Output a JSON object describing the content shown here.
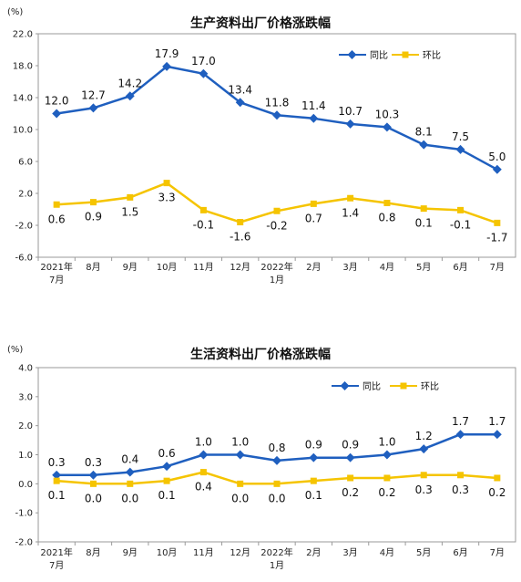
{
  "chart_data": [
    {
      "type": "line",
      "title": "生产资料出厂价格涨跌幅",
      "ylabel": "(%)",
      "ylim": [
        -6.0,
        22.0
      ],
      "yticks": [
        "22.0",
        "18.0",
        "14.0",
        "10.0",
        "6.0",
        "2.0",
        "-2.0",
        "-6.0"
      ],
      "categories": [
        {
          "line1": "2021年",
          "line2": "7月"
        },
        {
          "line1": "8月",
          "line2": ""
        },
        {
          "line1": "9月",
          "line2": ""
        },
        {
          "line1": "10月",
          "line2": ""
        },
        {
          "line1": "11月",
          "line2": ""
        },
        {
          "line1": "12月",
          "line2": ""
        },
        {
          "line1": "2022年",
          "line2": "1月"
        },
        {
          "line1": "2月",
          "line2": ""
        },
        {
          "line1": "3月",
          "line2": ""
        },
        {
          "line1": "4月",
          "line2": ""
        },
        {
          "line1": "5月",
          "line2": ""
        },
        {
          "line1": "6月",
          "line2": ""
        },
        {
          "line1": "7月",
          "line2": ""
        }
      ],
      "legend_position": "top-right",
      "series": [
        {
          "name": "同比",
          "color": "#1f5fbf",
          "marker": "diamond",
          "values": [
            12.0,
            12.7,
            14.2,
            17.9,
            17.0,
            13.4,
            11.8,
            11.4,
            10.7,
            10.3,
            8.1,
            7.5,
            5.0
          ],
          "labels": [
            "12.0",
            "12.7",
            "14.2",
            "17.9",
            "17.0",
            "13.4",
            "11.8",
            "11.4",
            "10.7",
            "10.3",
            "8.1",
            "7.5",
            "5.0"
          ]
        },
        {
          "name": "环比",
          "color": "#f5c400",
          "marker": "square",
          "values": [
            0.6,
            0.9,
            1.5,
            3.3,
            -0.1,
            -1.6,
            -0.2,
            0.7,
            1.4,
            0.8,
            0.1,
            -0.1,
            -1.7
          ],
          "labels": [
            "0.6",
            "0.9",
            "1.5",
            "3.3",
            "-0.1",
            "-1.6",
            "-0.2",
            "0.7",
            "1.4",
            "0.8",
            "0.1",
            "-0.1",
            "-1.7"
          ]
        }
      ]
    },
    {
      "type": "line",
      "title": "生活资料出厂价格涨跌幅",
      "ylabel": "(%)",
      "ylim": [
        -2.0,
        4.0
      ],
      "yticks": [
        "4.0",
        "3.0",
        "2.0",
        "1.0",
        "0.0",
        "-1.0",
        "-2.0"
      ],
      "categories": [
        {
          "line1": "2021年",
          "line2": "7月"
        },
        {
          "line1": "8月",
          "line2": ""
        },
        {
          "line1": "9月",
          "line2": ""
        },
        {
          "line1": "10月",
          "line2": ""
        },
        {
          "line1": "11月",
          "line2": ""
        },
        {
          "line1": "12月",
          "line2": ""
        },
        {
          "line1": "2022年",
          "line2": "1月"
        },
        {
          "line1": "2月",
          "line2": ""
        },
        {
          "line1": "3月",
          "line2": ""
        },
        {
          "line1": "4月",
          "line2": ""
        },
        {
          "line1": "5月",
          "line2": ""
        },
        {
          "line1": "6月",
          "line2": ""
        },
        {
          "line1": "7月",
          "line2": ""
        }
      ],
      "legend_position": "top-right",
      "series": [
        {
          "name": "同比",
          "color": "#1f5fbf",
          "marker": "diamond",
          "values": [
            0.3,
            0.3,
            0.4,
            0.6,
            1.0,
            1.0,
            0.8,
            0.9,
            0.9,
            1.0,
            1.2,
            1.7,
            1.7
          ],
          "labels": [
            "0.3",
            "0.3",
            "0.4",
            "0.6",
            "1.0",
            "1.0",
            "0.8",
            "0.9",
            "0.9",
            "1.0",
            "1.2",
            "1.7",
            "1.7"
          ]
        },
        {
          "name": "环比",
          "color": "#f5c400",
          "marker": "square",
          "values": [
            0.1,
            0.0,
            0.0,
            0.1,
            0.4,
            0.0,
            0.0,
            0.1,
            0.2,
            0.2,
            0.3,
            0.3,
            0.2
          ],
          "labels": [
            "0.1",
            "0.0",
            "0.0",
            "0.1",
            "0.4",
            "0.0",
            "0.0",
            "0.1",
            "0.2",
            "0.2",
            "0.3",
            "0.3",
            "0.2"
          ]
        }
      ]
    }
  ]
}
